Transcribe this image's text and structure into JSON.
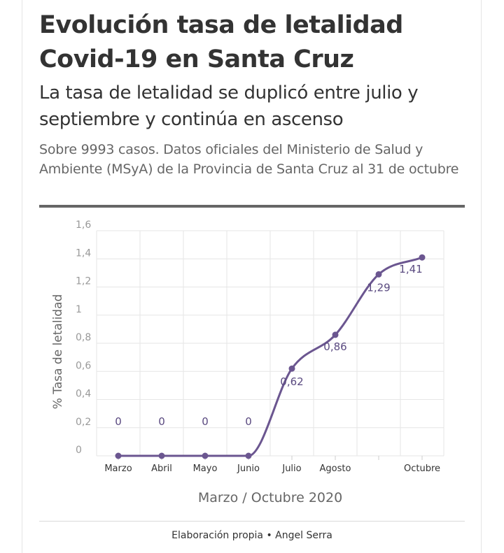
{
  "header": {
    "title": "Evolución tasa de letalidad Covid-19 en Santa Cruz",
    "subtitle": "La tasa de letalidad se duplicó entre julio y septiembre y continúa en ascenso",
    "note": "Sobre 9993 casos. Datos oficiales del Ministerio de Salud y Ambiente (MSyA) de la Provincia de Santa Cruz al 31 de octubre"
  },
  "footer": {
    "credit": "Elaboración propia • Angel Serra"
  },
  "colors": {
    "series": "#6b5690",
    "label": "#5a4a80",
    "grid": "#e6e6e6",
    "axis_text": "#999999"
  },
  "chart_data": {
    "type": "line",
    "xlabel": "Marzo / Octubre 2020",
    "ylabel": "% Tasa de letalidad",
    "ylim": [
      0,
      1.6
    ],
    "y_ticks": [
      "0",
      "0,2",
      "0,4",
      "0,6",
      "0,8",
      "1",
      "1,2",
      "1,4",
      "1,6"
    ],
    "y_tick_values": [
      0,
      0.2,
      0.4,
      0.6,
      0.8,
      1.0,
      1.2,
      1.4,
      1.6
    ],
    "categories": [
      "Marzo",
      "Abril",
      "Mayo",
      "Junio",
      "Julio",
      "Agosto",
      "",
      "Octubre"
    ],
    "values": [
      0,
      0,
      0,
      0,
      0.62,
      0.86,
      1.29,
      1.41
    ],
    "data_labels": [
      "0",
      "0",
      "0",
      "0",
      "0,62",
      "0,86",
      "1,29",
      "1,41"
    ],
    "grid": true,
    "legend": "none"
  }
}
